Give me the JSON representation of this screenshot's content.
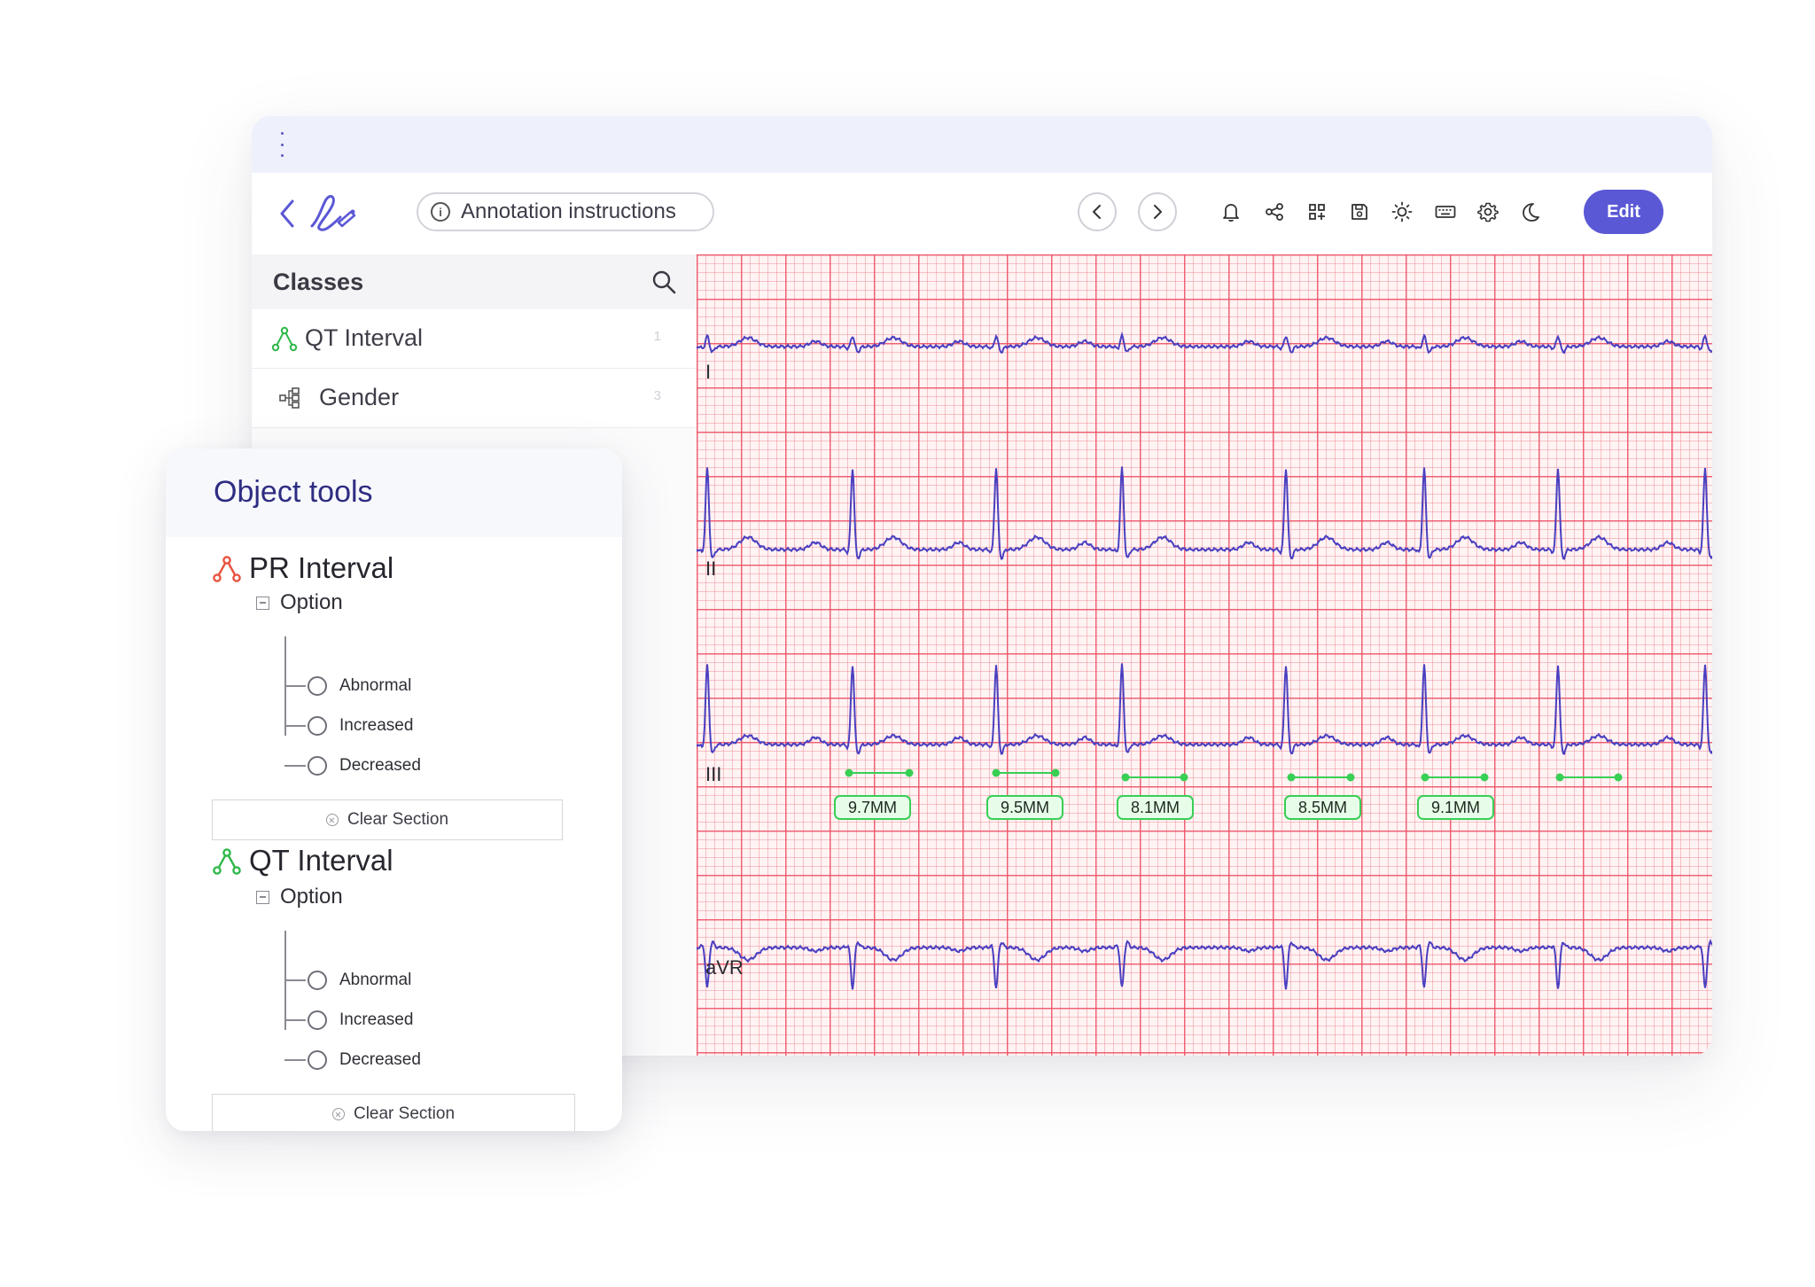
{
  "toolbar": {
    "instructions_label": "Annotation instructions",
    "edit_label": "Edit",
    "icons": [
      "back-icon",
      "logo-icon",
      "info-icon",
      "prev-icon",
      "next-icon",
      "bell-icon",
      "share-icon",
      "grid-icon",
      "save-icon",
      "brightness-icon",
      "keyboard-icon",
      "settings-icon",
      "moon-icon"
    ]
  },
  "classes": {
    "title": "Classes",
    "items": [
      {
        "label": "QT Interval",
        "count": "1",
        "icon": "polyline-icon"
      },
      {
        "label": "Gender",
        "count": "3",
        "icon": "hierarchy-icon"
      }
    ]
  },
  "ecg": {
    "leads": [
      "I",
      "II",
      "III",
      "aVR"
    ],
    "measurements": [
      {
        "label": "9.7MM"
      },
      {
        "label": "9.5MM"
      },
      {
        "label": "8.1MM"
      },
      {
        "label": "8.5MM"
      },
      {
        "label": "9.1MM"
      }
    ]
  },
  "object_tools": {
    "title": "Object tools",
    "tools": [
      {
        "label": "PR Interval",
        "option_label": "Option",
        "choices": [
          "Abnormal",
          "Increased",
          "Decreased"
        ],
        "clear_label": "Clear Section"
      },
      {
        "label": "QT Interval",
        "option_label": "Option",
        "choices": [
          "Abnormal",
          "Increased",
          "Decreased"
        ],
        "clear_label": "Clear Section"
      }
    ]
  },
  "colors": {
    "accent": "#5b58d6",
    "pr_icon": "#e8523f",
    "qt_icon": "#2fb84a",
    "ecg_trace": "#4a3fc0",
    "grid_major": "#ec5064",
    "measure_green": "#38cf55"
  }
}
